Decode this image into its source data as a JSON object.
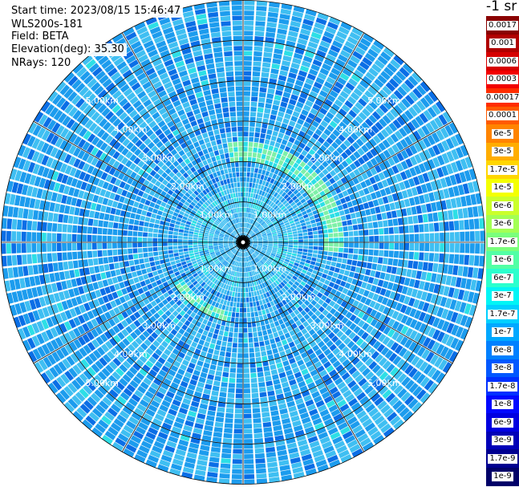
{
  "header": {
    "start_time": "Start time: 2023/08/15 15:46:47",
    "device": "WLS200s-181",
    "field": "Field: BETA",
    "elevation": "Elevation(deg): 35.30",
    "nrays": "NRays: 120"
  },
  "colorbar": {
    "unit": "-1 sr",
    "segments": [
      {
        "label": "0.0017",
        "color": "#8a0000"
      },
      {
        "label": "0.001",
        "color": "#b00000"
      },
      {
        "label": "0.0006",
        "color": "#d60000"
      },
      {
        "label": "0.0003",
        "color": "#f20000"
      },
      {
        "label": "0.00017",
        "color": "#ff2d00"
      },
      {
        "label": "0.0001",
        "color": "#ff5a00"
      },
      {
        "label": "6e-5",
        "color": "#ff8400"
      },
      {
        "label": "3e-5",
        "color": "#ffad00"
      },
      {
        "label": "1.7e-5",
        "color": "#ffd600"
      },
      {
        "label": "1e-5",
        "color": "#f4ff00"
      },
      {
        "label": "6e-6",
        "color": "#cbff2b"
      },
      {
        "label": "3e-6",
        "color": "#a3ff54"
      },
      {
        "label": "1.7e-6",
        "color": "#7aff7c"
      },
      {
        "label": "1e-6",
        "color": "#52ffa5"
      },
      {
        "label": "6e-7",
        "color": "#2bffcd"
      },
      {
        "label": "3e-7",
        "color": "#00f5f5"
      },
      {
        "label": "1.7e-7",
        "color": "#00d0ff"
      },
      {
        "label": "1e-7",
        "color": "#00a8ff"
      },
      {
        "label": "6e-8",
        "color": "#0080ff"
      },
      {
        "label": "3e-8",
        "color": "#0058ff"
      },
      {
        "label": "1.7e-8",
        "color": "#0030ff"
      },
      {
        "label": "1e-8",
        "color": "#0008ff"
      },
      {
        "label": "6e-9",
        "color": "#0000e0"
      },
      {
        "label": "3e-9",
        "color": "#0000b8"
      },
      {
        "label": "1.7e-9",
        "color": "#000090"
      },
      {
        "label": "1e-9",
        "color": "#000068"
      }
    ]
  },
  "chart_data": {
    "type": "heatmap",
    "projection": "polar-ppi",
    "field": "BETA",
    "elevation_deg": 35.3,
    "n_rays": 120,
    "range_rings_km": [
      1,
      2,
      3,
      4,
      5
    ],
    "ring_labels": [
      "1.00km",
      "2.00km",
      "3.00km",
      "4.00km",
      "5.00km"
    ],
    "max_range_km": 6.0,
    "grid_azimuth_step_deg": 30,
    "background_colormap_value": "1e-7",
    "features": [
      {
        "name": "bright arc north-east",
        "azimuth_range_deg": [
          350,
          95
        ],
        "range_km": [
          2.0,
          2.5
        ],
        "value": "3e-7"
      },
      {
        "name": "bright arc south-west",
        "azimuth_range_deg": [
          190,
          240
        ],
        "range_km": [
          1.7,
          2.0
        ],
        "value": "3e-7"
      },
      {
        "name": "inner light ring",
        "range_km": [
          0.7,
          1.4
        ],
        "value": "1.7e-7"
      }
    ]
  }
}
